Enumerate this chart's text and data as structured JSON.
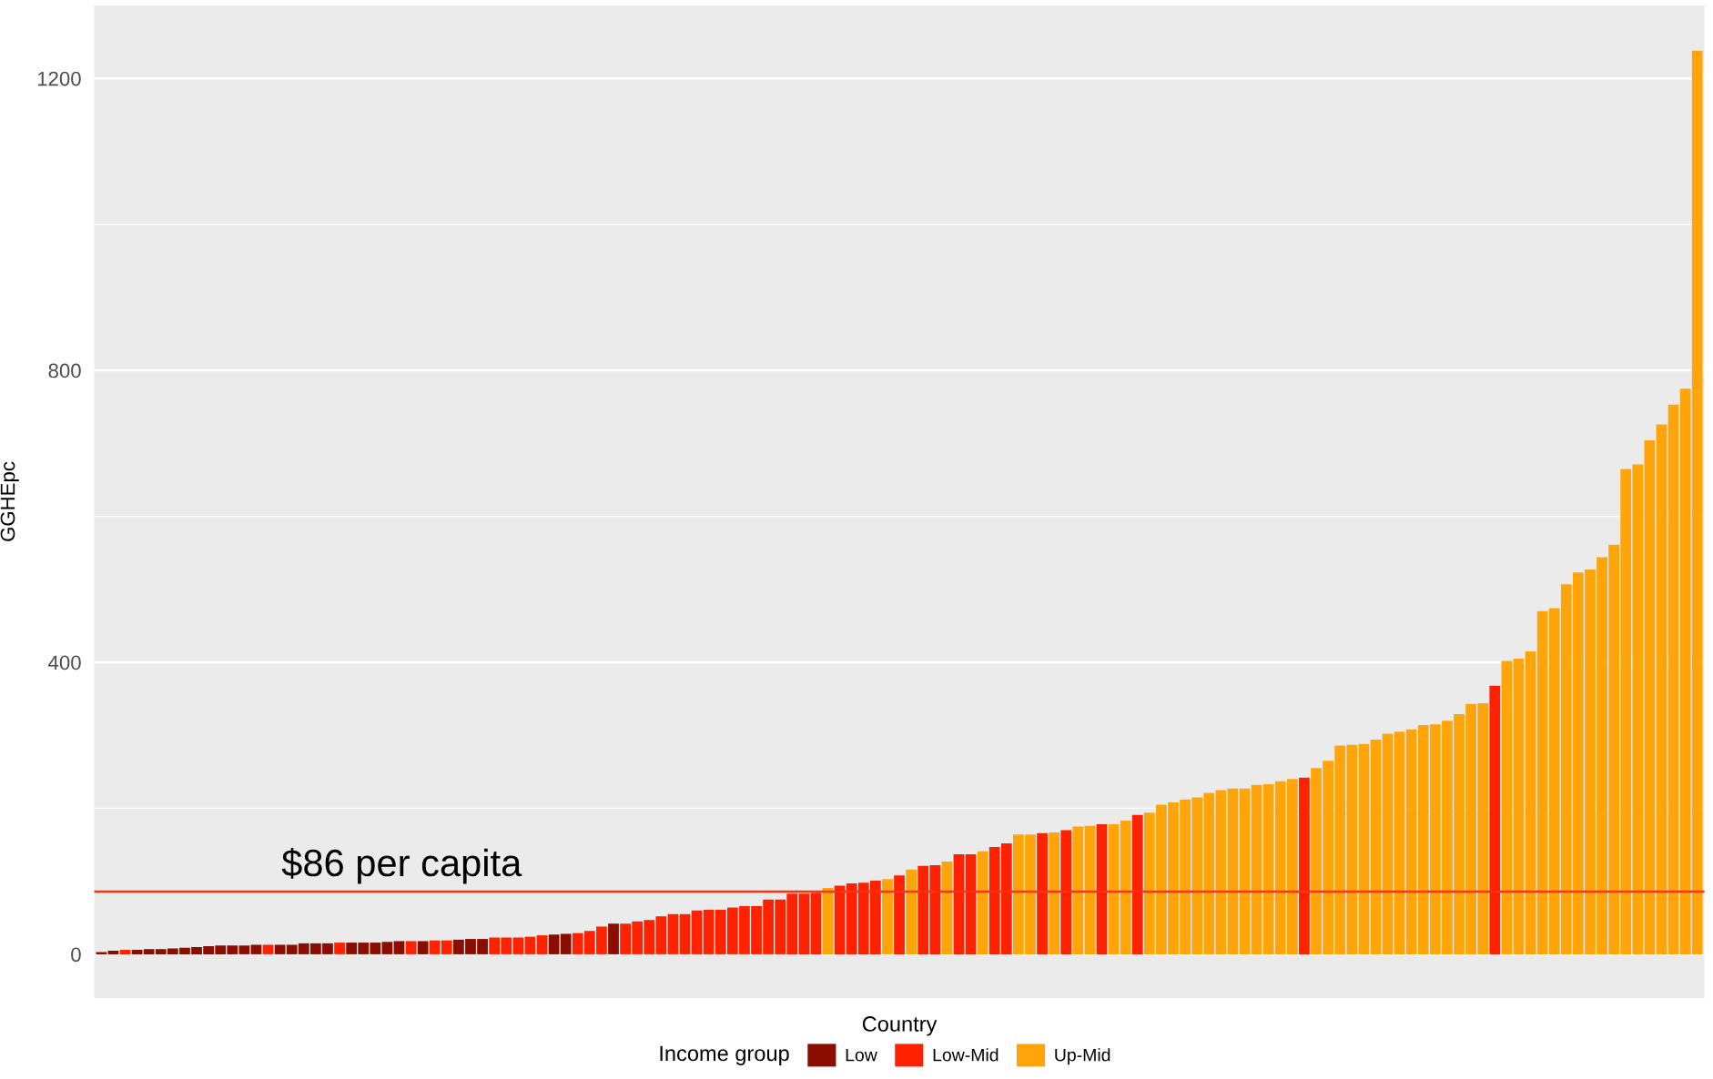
{
  "chart_data": {
    "type": "bar",
    "xlabel": "Country",
    "ylabel": "GGHEpc",
    "legend_title": "Income group",
    "legend": "bottom",
    "grid": "y",
    "tick_labels": "y",
    "categories": [
      null,
      null,
      null,
      null,
      null,
      null,
      null,
      null,
      null,
      null,
      null,
      null,
      null,
      null,
      null,
      null,
      null,
      null,
      null,
      null,
      null,
      null,
      null,
      null,
      null,
      null,
      null,
      null,
      null,
      null,
      null,
      null,
      null,
      null,
      null,
      null,
      null,
      null,
      null,
      null,
      null,
      null,
      null,
      null,
      null,
      null,
      null,
      null,
      null,
      null,
      null,
      null,
      null,
      null,
      null,
      null,
      null,
      null,
      null,
      null,
      null,
      null,
      null,
      null,
      null,
      null,
      null,
      null,
      null,
      null,
      null,
      null,
      null,
      null,
      null,
      null,
      null,
      null,
      null,
      null,
      null,
      null,
      null,
      null,
      null,
      null,
      null,
      null,
      null,
      null,
      null,
      null,
      null,
      null,
      null,
      null,
      null,
      null,
      null,
      null,
      null,
      null,
      null,
      null,
      null,
      null,
      null,
      null,
      null,
      null,
      null,
      null,
      null,
      null,
      null,
      null,
      null,
      null,
      null,
      null,
      null,
      null,
      null,
      null,
      null,
      null,
      null,
      null,
      null,
      null,
      null,
      null,
      null,
      null,
      null
    ],
    "ylim": [
      -60,
      1300
    ],
    "yticks": [
      0,
      {
        "value": 200,
        "label": null
      },
      400,
      {
        "value": 600,
        "label": null
      },
      800,
      {
        "value": 1000,
        "label": null
      },
      1200
    ],
    "ref_lines": [
      {
        "axis": "y",
        "value": 86,
        "label": "$86 per capita",
        "color": "#ff3311"
      }
    ],
    "series": [
      {
        "name": "Low",
        "color": "#8b0d00",
        "values": [
          3,
          5,
          null,
          6,
          7,
          7,
          8,
          9,
          10,
          11,
          12,
          12,
          12,
          13,
          null,
          13,
          13,
          15,
          15,
          15,
          null,
          16,
          16,
          16,
          17,
          18,
          null,
          18,
          null,
          null,
          20,
          21,
          21,
          null,
          null,
          null,
          null,
          null,
          27,
          28,
          null,
          null,
          null,
          42,
          null,
          null,
          null,
          null,
          null,
          null,
          null,
          null,
          null,
          null,
          null,
          null,
          null,
          null,
          null,
          null,
          null,
          null,
          null,
          null,
          null,
          null,
          null,
          null,
          null,
          null,
          null,
          null,
          null,
          null,
          null,
          null,
          null,
          null,
          null,
          null,
          null,
          null,
          null,
          null,
          null,
          null,
          null,
          null,
          null,
          null,
          null,
          null,
          null,
          null,
          null,
          null,
          null,
          null,
          null,
          null,
          null,
          null,
          null,
          null,
          null,
          null,
          null,
          null,
          null,
          null,
          null,
          null,
          null,
          null,
          null,
          null,
          null,
          null,
          null,
          null,
          null,
          null,
          null,
          null,
          null,
          null,
          null,
          null,
          null,
          null,
          null,
          null,
          null,
          null,
          null
        ]
      },
      {
        "name": "Low-Mid",
        "color": "#ff2200",
        "values": [
          null,
          null,
          6,
          null,
          null,
          null,
          null,
          null,
          null,
          null,
          null,
          null,
          null,
          null,
          13,
          null,
          null,
          null,
          null,
          null,
          16,
          null,
          null,
          null,
          null,
          null,
          18,
          null,
          19,
          19,
          null,
          null,
          null,
          23,
          23,
          23,
          24,
          26,
          null,
          null,
          29,
          32,
          38,
          null,
          42,
          45,
          47,
          52,
          55,
          55,
          60,
          61,
          61,
          64,
          66,
          66,
          75,
          75,
          83,
          83,
          84,
          null,
          94,
          97,
          98,
          101,
          null,
          108,
          null,
          121,
          122,
          null,
          137,
          137,
          null,
          147,
          152,
          null,
          null,
          166,
          null,
          170,
          null,
          null,
          178,
          null,
          null,
          191,
          null,
          null,
          null,
          null,
          null,
          null,
          null,
          null,
          null,
          null,
          null,
          null,
          null,
          242,
          null,
          null,
          null,
          null,
          null,
          null,
          null,
          null,
          null,
          null,
          null,
          null,
          null,
          null,
          null,
          368,
          null,
          null,
          null,
          null,
          null,
          null,
          null,
          null,
          null,
          null,
          null,
          null,
          null,
          null,
          null,
          null,
          null
        ]
      },
      {
        "name": "Up-Mid",
        "color": "#ffa50a",
        "values": [
          null,
          null,
          null,
          null,
          null,
          null,
          null,
          null,
          null,
          null,
          null,
          null,
          null,
          null,
          null,
          null,
          null,
          null,
          null,
          null,
          null,
          null,
          null,
          null,
          null,
          null,
          null,
          null,
          null,
          null,
          null,
          null,
          null,
          null,
          null,
          null,
          null,
          null,
          null,
          null,
          null,
          null,
          null,
          null,
          null,
          null,
          null,
          null,
          null,
          null,
          null,
          null,
          null,
          null,
          null,
          null,
          null,
          null,
          null,
          null,
          null,
          91,
          null,
          null,
          null,
          null,
          103,
          null,
          116,
          null,
          null,
          127,
          null,
          null,
          141,
          null,
          null,
          164,
          164,
          null,
          167,
          null,
          175,
          176,
          null,
          178,
          183,
          null,
          194,
          205,
          208,
          212,
          215,
          221,
          225,
          227,
          227,
          232,
          233,
          237,
          240,
          null,
          255,
          265,
          286,
          287,
          288,
          294,
          302,
          305,
          308,
          314,
          315,
          320,
          329,
          343,
          344,
          null,
          402,
          405,
          415,
          470,
          474,
          507,
          523,
          527,
          544,
          561,
          665,
          671,
          704,
          726,
          753,
          775,
          1238
        ]
      }
    ]
  }
}
